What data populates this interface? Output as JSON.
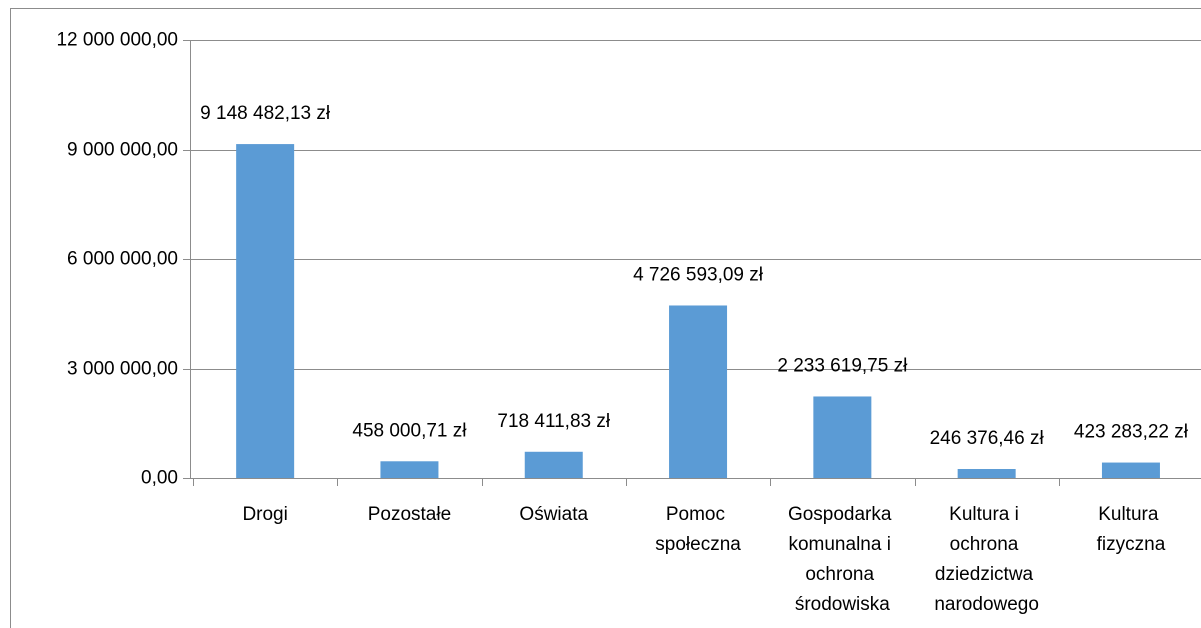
{
  "chart_data": {
    "type": "bar",
    "categories": [
      "Drogi",
      "Pozostałe",
      "Oświata",
      "Pomoc społeczna",
      "Gospodarka komunalna i ochrona środowiska",
      "Kultura i ochrona dziedzictwa narodowego",
      "Kultura fizyczna"
    ],
    "values": [
      9148482.13,
      458000.71,
      718411.83,
      4726593.09,
      2233619.75,
      246376.46,
      423283.22
    ],
    "value_labels": [
      "9 148 482,13 zł",
      "458 000,71 zł",
      "718 411,83 zł",
      "4 726 593,09 zł",
      "2 233 619,75 zł",
      "246 376,46 zł",
      "423 283,22 zł"
    ],
    "color": "#5b9bd5",
    "ylim": [
      0,
      12000000
    ],
    "yticks": [
      {
        "value": 0,
        "label": "0,00"
      },
      {
        "value": 3000000,
        "label": "3 000 000,00"
      },
      {
        "value": 6000000,
        "label": "6 000 000,00"
      },
      {
        "value": 9000000,
        "label": "9 000 000,00"
      },
      {
        "value": 12000000,
        "label": "12 000 000,00"
      }
    ],
    "grid": true
  }
}
